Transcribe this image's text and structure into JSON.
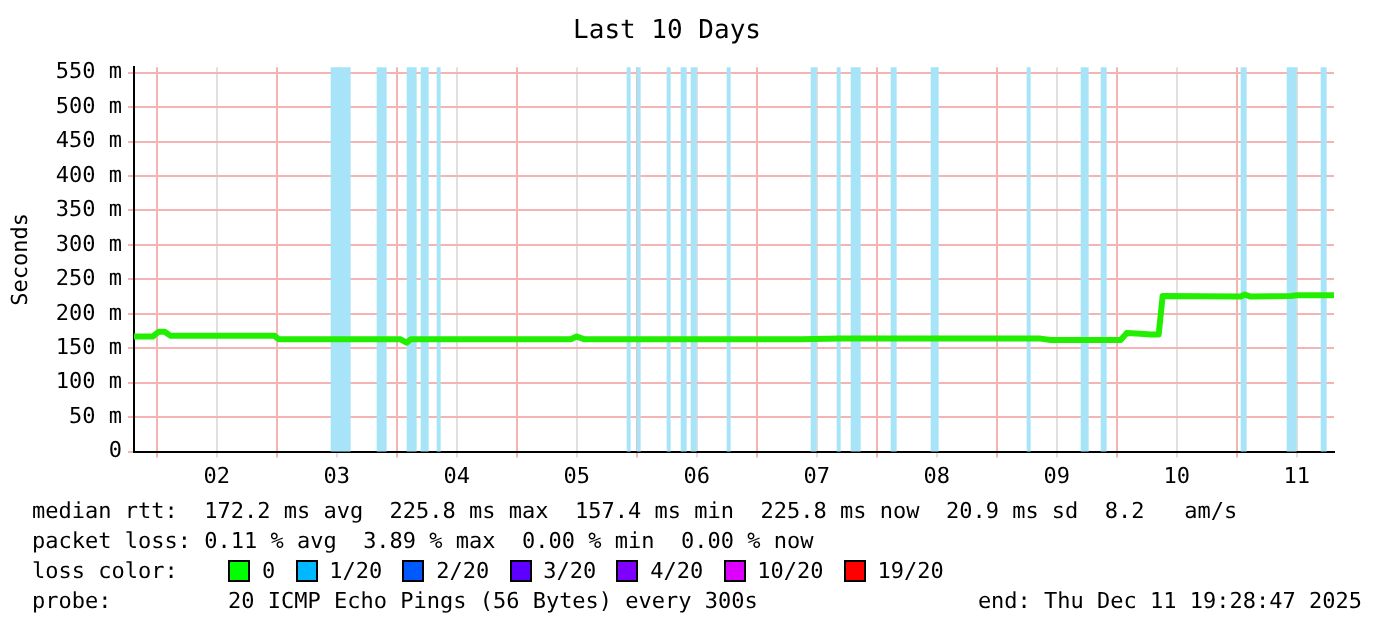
{
  "chart_data": {
    "type": "line",
    "title": "Last 10 Days",
    "ylabel": "Seconds",
    "xlim": [
      "2025-12-01T19:28",
      "2025-12-11T19:28"
    ],
    "xticks": [
      {
        "value": "2025-12-02",
        "label": null
      },
      {
        "value": "2025-12-02T12:00",
        "label": "02"
      },
      {
        "value": "2025-12-03",
        "label": null
      },
      {
        "value": "2025-12-03T12:00",
        "label": "03"
      },
      {
        "value": "2025-12-04",
        "label": null
      },
      {
        "value": "2025-12-04T12:00",
        "label": "04"
      },
      {
        "value": "2025-12-05",
        "label": null
      },
      {
        "value": "2025-12-05T12:00",
        "label": "05"
      },
      {
        "value": "2025-12-06",
        "label": null
      },
      {
        "value": "2025-12-06T12:00",
        "label": "06"
      },
      {
        "value": "2025-12-07",
        "label": null
      },
      {
        "value": "2025-12-07T12:00",
        "label": "07"
      },
      {
        "value": "2025-12-08",
        "label": null
      },
      {
        "value": "2025-12-08T12:00",
        "label": "08"
      },
      {
        "value": "2025-12-09",
        "label": null
      },
      {
        "value": "2025-12-09T12:00",
        "label": "09"
      },
      {
        "value": "2025-12-10",
        "label": null
      },
      {
        "value": "2025-12-10T12:00",
        "label": "10"
      },
      {
        "value": "2025-12-11",
        "label": null
      },
      {
        "value": "2025-12-11T12:00",
        "label": "11"
      }
    ],
    "ylim": [
      0,
      558
    ],
    "yticks": [
      0,
      {
        "value": 50,
        "label": "50 m"
      },
      {
        "value": 100,
        "label": "100 m"
      },
      {
        "value": 150,
        "label": "150 m"
      },
      {
        "value": 200,
        "label": "200 m"
      },
      {
        "value": 250,
        "label": "250 m"
      },
      {
        "value": 300,
        "label": "300 m"
      },
      {
        "value": 350,
        "label": "350 m"
      },
      {
        "value": 400,
        "label": "400 m"
      },
      {
        "value": 450,
        "label": "450 m"
      },
      {
        "value": 500,
        "label": "500 m"
      },
      {
        "value": 550,
        "label": "550 m"
      }
    ],
    "grid": true,
    "marker": "none",
    "line_style": "solid",
    "series": [
      {
        "color": "#22ee00",
        "x": [
          "2025-12-01T19:28",
          "2025-12-01T23:12",
          "2025-12-02T00:24",
          "2025-12-02T01:36",
          "2025-12-02T02:48",
          "2025-12-02T23:36",
          "2025-12-03T00:24",
          "2025-12-04T00:48",
          "2025-12-04T02:00",
          "2025-12-04T02:48",
          "2025-12-05T10:48",
          "2025-12-05T12:00",
          "2025-12-05T13:36",
          "2025-12-07T08:48",
          "2025-12-07T16:48",
          "2025-12-09T08:48",
          "2025-12-09T10:48",
          "2025-12-10T00:48",
          "2025-12-10T02:00",
          "2025-12-10T04:48",
          "2025-12-10T06:48",
          "2025-12-10T08:24",
          "2025-12-10T09:12",
          "2025-12-11T00:48",
          "2025-12-11T01:36",
          "2025-12-11T02:48",
          "2025-12-11T10:48",
          "2025-12-11T12:00",
          "2025-12-11T19:28"
        ],
        "values": [
          167,
          167,
          174,
          174,
          168,
          168,
          163,
          163,
          158,
          163,
          163,
          167,
          163,
          163,
          164,
          164,
          162,
          162,
          172,
          171,
          170,
          170,
          226,
          225,
          228,
          225,
          226,
          227,
          227
        ]
      }
    ],
    "bands": [
      {
        "axis": "x",
        "from": "2025-12-03T10:48",
        "to": "2025-12-03T14:48",
        "color": "#a8e4f8"
      },
      {
        "axis": "x",
        "from": "2025-12-03T20:00",
        "to": "2025-12-03T22:00",
        "color": "#a8e4f8"
      },
      {
        "axis": "x",
        "from": "2025-12-04T02:00",
        "to": "2025-12-04T04:00",
        "color": "#a8e4f8"
      },
      {
        "axis": "x",
        "from": "2025-12-04T04:48",
        "to": "2025-12-04T06:24",
        "color": "#a8e4f8"
      },
      {
        "axis": "x",
        "from": "2025-12-04T08:00",
        "to": "2025-12-04T08:48",
        "color": "#a8e4f8"
      },
      {
        "axis": "x",
        "from": "2025-12-05T22:00",
        "to": "2025-12-05T22:48",
        "color": "#a8e4f8"
      },
      {
        "axis": "x",
        "from": "2025-12-06T00:00",
        "to": "2025-12-06T00:48",
        "color": "#a8e4f8"
      },
      {
        "axis": "x",
        "from": "2025-12-06T06:00",
        "to": "2025-12-06T06:48",
        "color": "#a8e4f8"
      },
      {
        "axis": "x",
        "from": "2025-12-06T08:48",
        "to": "2025-12-06T10:00",
        "color": "#a8e4f8"
      },
      {
        "axis": "x",
        "from": "2025-12-06T10:48",
        "to": "2025-12-06T12:00",
        "color": "#a8e4f8"
      },
      {
        "axis": "x",
        "from": "2025-12-06T18:00",
        "to": "2025-12-06T18:48",
        "color": "#a8e4f8"
      },
      {
        "axis": "x",
        "from": "2025-12-07T10:48",
        "to": "2025-12-07T12:00",
        "color": "#a8e4f8"
      },
      {
        "axis": "x",
        "from": "2025-12-07T16:00",
        "to": "2025-12-07T16:48",
        "color": "#a8e4f8"
      },
      {
        "axis": "x",
        "from": "2025-12-07T18:48",
        "to": "2025-12-07T20:48",
        "color": "#a8e4f8"
      },
      {
        "axis": "x",
        "from": "2025-12-08T02:48",
        "to": "2025-12-08T04:00",
        "color": "#a8e4f8"
      },
      {
        "axis": "x",
        "from": "2025-12-08T10:48",
        "to": "2025-12-08T12:24",
        "color": "#a8e4f8"
      },
      {
        "axis": "x",
        "from": "2025-12-09T06:00",
        "to": "2025-12-09T06:48",
        "color": "#a8e4f8"
      },
      {
        "axis": "x",
        "from": "2025-12-09T16:48",
        "to": "2025-12-09T18:24",
        "color": "#a8e4f8"
      },
      {
        "axis": "x",
        "from": "2025-12-09T20:48",
        "to": "2025-12-09T22:00",
        "color": "#a8e4f8"
      },
      {
        "axis": "x",
        "from": "2025-12-11T00:48",
        "to": "2025-12-11T02:00",
        "color": "#a8e4f8"
      },
      {
        "axis": "x",
        "from": "2025-12-11T10:00",
        "to": "2025-12-11T12:00",
        "color": "#a8e4f8"
      },
      {
        "axis": "x",
        "from": "2025-12-11T16:48",
        "to": "2025-12-11T18:00",
        "color": "#a8e4f8"
      }
    ],
    "annotations": [
      "median rtt:  172.2 ms avg  225.8 ms max  157.4 ms min  225.8 ms now  20.9 ms sd  8.2   am/s",
      "packet loss: 0.11 % avg  3.89 % max  0.00 % min  0.00 % now",
      "loss color:",
      "0",
      "1/20",
      "2/20",
      "3/20",
      "4/20",
      "10/20",
      "19/20",
      "probe:",
      "20 ICMP Echo Pings (56 Bytes) every 300s",
      "end: Thu Dec 11 19:28:47 2025"
    ]
  }
}
